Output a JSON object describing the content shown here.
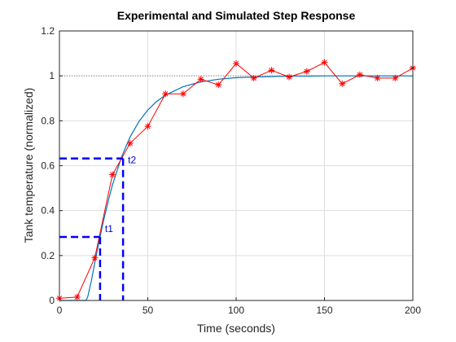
{
  "chart_data": {
    "type": "line",
    "title": "Experimental and Simulated Step Response",
    "xlabel": "Time (seconds)",
    "ylabel": "Tank temperature (normalized)",
    "xlim": [
      0,
      200
    ],
    "ylim": [
      0,
      1.2
    ],
    "xticks": [
      0,
      50,
      100,
      150,
      200
    ],
    "yticks": [
      0,
      0.2,
      0.4,
      0.6,
      0.8,
      1,
      1.2
    ],
    "xtick_labels": [
      "0",
      "50",
      "100",
      "150",
      "200"
    ],
    "ytick_labels": [
      "0",
      "0.2",
      "0.4",
      "0.6",
      "0.8",
      "1",
      "1.2"
    ],
    "grid": true,
    "reference_line": {
      "y": 1,
      "style": "dotted",
      "color": "#808080"
    },
    "series": [
      {
        "kind": "measured",
        "color": "#ff0000",
        "marker": "asterisk",
        "x": [
          0,
          10,
          20,
          30,
          40,
          50,
          60,
          70,
          80,
          90,
          100,
          110,
          120,
          130,
          140,
          150,
          160,
          170,
          180,
          190,
          200
        ],
        "y": [
          0.01,
          0.015,
          0.19,
          0.56,
          0.7,
          0.775,
          0.92,
          0.92,
          0.985,
          0.96,
          1.055,
          0.99,
          1.025,
          0.995,
          1.02,
          1.06,
          0.965,
          1.005,
          0.99,
          0.99,
          1.035
        ]
      },
      {
        "kind": "simulated",
        "color": "#0072bd",
        "x": [
          0,
          15,
          16,
          18,
          20,
          22,
          25,
          28,
          30,
          35,
          40,
          45,
          50,
          55,
          60,
          70,
          80,
          90,
          100,
          110,
          120,
          130,
          140,
          150,
          160,
          170,
          180,
          190,
          200
        ],
        "y": [
          0,
          0,
          0.016,
          0.085,
          0.167,
          0.247,
          0.357,
          0.455,
          0.514,
          0.636,
          0.728,
          0.797,
          0.848,
          0.886,
          0.914,
          0.952,
          0.973,
          0.985,
          0.992,
          0.995,
          0.997,
          0.999,
          0.999,
          1.0,
          1.0,
          1.0,
          1.0,
          1.0,
          1.0
        ]
      }
    ],
    "annotations": [
      {
        "label": "t1",
        "t": 23,
        "level": 0.283,
        "color": "#0000ff"
      },
      {
        "label": "t2",
        "t": 36,
        "level": 0.632,
        "color": "#0000ff"
      }
    ]
  }
}
